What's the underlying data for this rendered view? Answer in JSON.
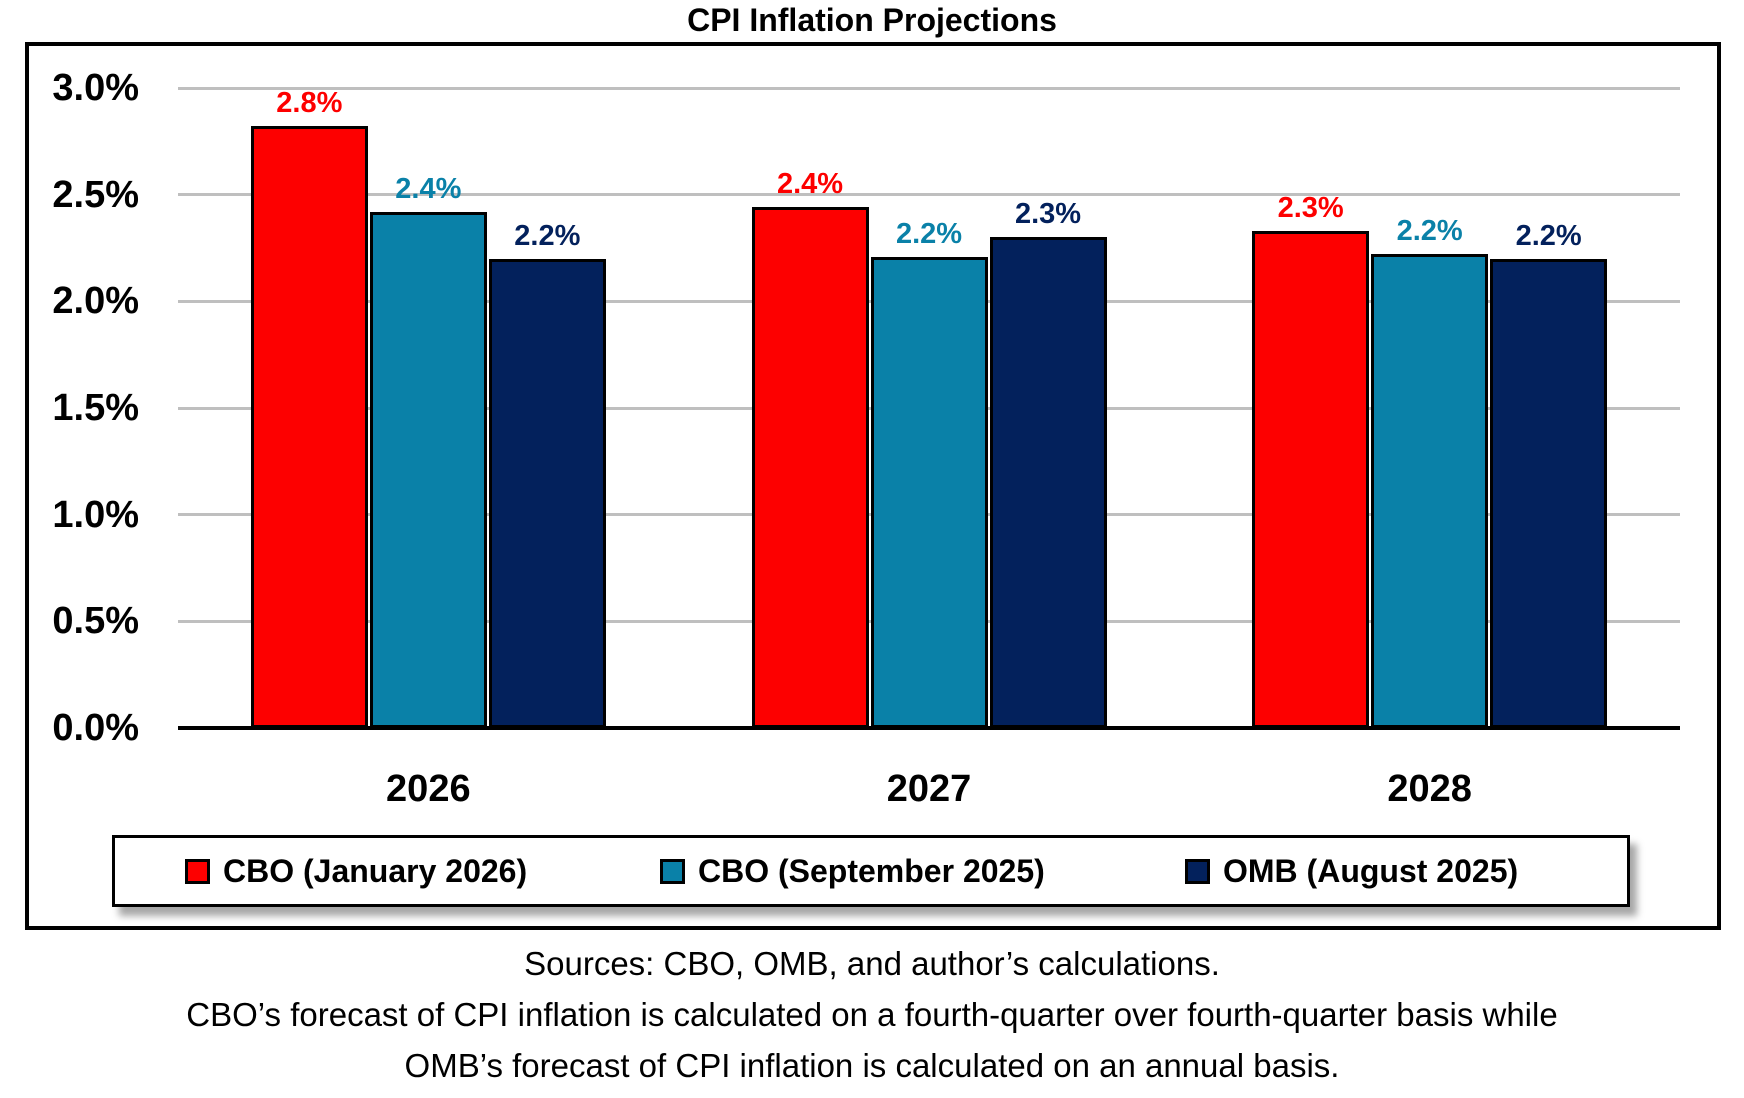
{
  "chart": {
    "title": "CPI Inflation Projections"
  },
  "chart_data": {
    "type": "bar",
    "title": "CPI Inflation Projections",
    "categories": [
      "2026",
      "2027",
      "2028"
    ],
    "series": [
      {
        "name": "CBO (January 2026)",
        "color": "#fd0000",
        "values": [
          2.82,
          2.44,
          2.33
        ],
        "labels": [
          "2.8%",
          "2.4%",
          "2.3%"
        ]
      },
      {
        "name": "CBO (September 2025)",
        "color": "#0a81a8",
        "values": [
          2.42,
          2.21,
          2.22
        ],
        "labels": [
          "2.4%",
          "2.2%",
          "2.2%"
        ]
      },
      {
        "name": "OMB (August 2025)",
        "color": "#03215c",
        "values": [
          2.2,
          2.3,
          2.2
        ],
        "labels": [
          "2.2%",
          "2.3%",
          "2.2%"
        ]
      }
    ],
    "ylim": [
      0,
      3
    ],
    "y_ticks": [
      {
        "value": 3.0,
        "label": "3.0%"
      },
      {
        "value": 2.5,
        "label": "2.5%"
      },
      {
        "value": 2.0,
        "label": "2.0%"
      },
      {
        "value": 1.5,
        "label": "1.5%"
      },
      {
        "value": 1.0,
        "label": "1.0%"
      },
      {
        "value": 0.5,
        "label": "0.5%"
      },
      {
        "value": 0.0,
        "label": "0.0%"
      }
    ],
    "grid": true,
    "legend_position": "bottom",
    "gridline_color": "#bfbfbf",
    "bar_outline_color": "#000000"
  },
  "footer": {
    "line1": "Sources: CBO, OMB, and author’s calculations.",
    "line2": "CBO’s forecast of CPI inflation is calculated on a fourth-quarter over fourth-quarter basis while",
    "line3": "OMB’s forecast of CPI inflation is calculated on an annual basis."
  }
}
